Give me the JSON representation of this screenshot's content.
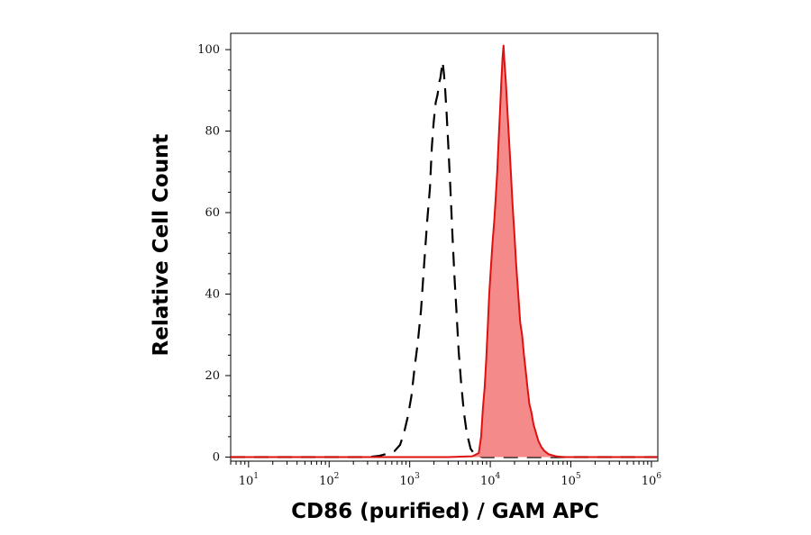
{
  "chart_data": {
    "type": "area",
    "title": "",
    "xlabel": "CD86 (purified) / GAM APC",
    "ylabel": "Relative Cell Count",
    "x_scale": "log",
    "xlim": [
      6,
      1200000
    ],
    "ylim": [
      -1,
      104
    ],
    "x_ticks": [
      {
        "value": 10,
        "base": "10",
        "exp": "1"
      },
      {
        "value": 100,
        "base": "10",
        "exp": "2"
      },
      {
        "value": 1000,
        "base": "10",
        "exp": "3"
      },
      {
        "value": 10000,
        "base": "10",
        "exp": "4"
      },
      {
        "value": 100000,
        "base": "10",
        "exp": "5"
      },
      {
        "value": 1000000,
        "base": "10",
        "exp": "6"
      }
    ],
    "y_ticks": [
      {
        "value": 0,
        "label": "0"
      },
      {
        "value": 20,
        "label": "20"
      },
      {
        "value": 40,
        "label": "40"
      },
      {
        "value": 60,
        "label": "60"
      },
      {
        "value": 80,
        "label": "80"
      },
      {
        "value": 100,
        "label": "100"
      }
    ],
    "series": [
      {
        "style": "dashed-black",
        "color": "#000000",
        "fill": "none",
        "points": [
          [
            6,
            0
          ],
          [
            300,
            0
          ],
          [
            420,
            0.3
          ],
          [
            520,
            0.8
          ],
          [
            650,
            1.5
          ],
          [
            760,
            3
          ],
          [
            850,
            6
          ],
          [
            950,
            10
          ],
          [
            1050,
            15
          ],
          [
            1150,
            22
          ],
          [
            1260,
            28
          ],
          [
            1380,
            36
          ],
          [
            1520,
            48
          ],
          [
            1650,
            58
          ],
          [
            1780,
            66
          ],
          [
            1880,
            76
          ],
          [
            1980,
            82
          ],
          [
            2100,
            87
          ],
          [
            2220,
            89
          ],
          [
            2320,
            92
          ],
          [
            2400,
            93
          ],
          [
            2480,
            95
          ],
          [
            2560,
            97
          ],
          [
            2660,
            94
          ],
          [
            2760,
            90
          ],
          [
            2880,
            84
          ],
          [
            3020,
            76
          ],
          [
            3200,
            66
          ],
          [
            3400,
            54
          ],
          [
            3600,
            44
          ],
          [
            3800,
            36
          ],
          [
            4050,
            26
          ],
          [
            4350,
            18
          ],
          [
            4700,
            11
          ],
          [
            5100,
            6
          ],
          [
            5700,
            2
          ],
          [
            6500,
            0.5
          ],
          [
            8000,
            0
          ],
          [
            1200000,
            0
          ]
        ]
      },
      {
        "style": "filled-red",
        "color": "#e01010",
        "fill": "#f48a8a",
        "points": [
          [
            6,
            0
          ],
          [
            3000,
            0
          ],
          [
            6000,
            0.2
          ],
          [
            7200,
            1
          ],
          [
            7700,
            5
          ],
          [
            8100,
            12
          ],
          [
            8500,
            17
          ],
          [
            8900,
            24
          ],
          [
            9300,
            32
          ],
          [
            9700,
            40
          ],
          [
            10200,
            47
          ],
          [
            10700,
            53
          ],
          [
            11200,
            58
          ],
          [
            11700,
            64
          ],
          [
            12200,
            70
          ],
          [
            12700,
            78
          ],
          [
            13200,
            85
          ],
          [
            13700,
            92
          ],
          [
            14200,
            98
          ],
          [
            14600,
            101
          ],
          [
            15000,
            97
          ],
          [
            15600,
            92
          ],
          [
            16300,
            85
          ],
          [
            17100,
            78
          ],
          [
            18000,
            70
          ],
          [
            18900,
            62
          ],
          [
            19900,
            55
          ],
          [
            21000,
            47
          ],
          [
            22200,
            40
          ],
          [
            23500,
            33
          ],
          [
            24800,
            30
          ],
          [
            26200,
            25
          ],
          [
            27600,
            21
          ],
          [
            29000,
            17
          ],
          [
            30600,
            13
          ],
          [
            32400,
            11
          ],
          [
            34400,
            8
          ],
          [
            36800,
            6
          ],
          [
            39500,
            4
          ],
          [
            43000,
            2.5
          ],
          [
            47000,
            1.5
          ],
          [
            53000,
            0.7
          ],
          [
            65000,
            0.2
          ],
          [
            80000,
            0
          ],
          [
            1200000,
            0
          ]
        ]
      }
    ],
    "legend": "none",
    "grid": false
  }
}
